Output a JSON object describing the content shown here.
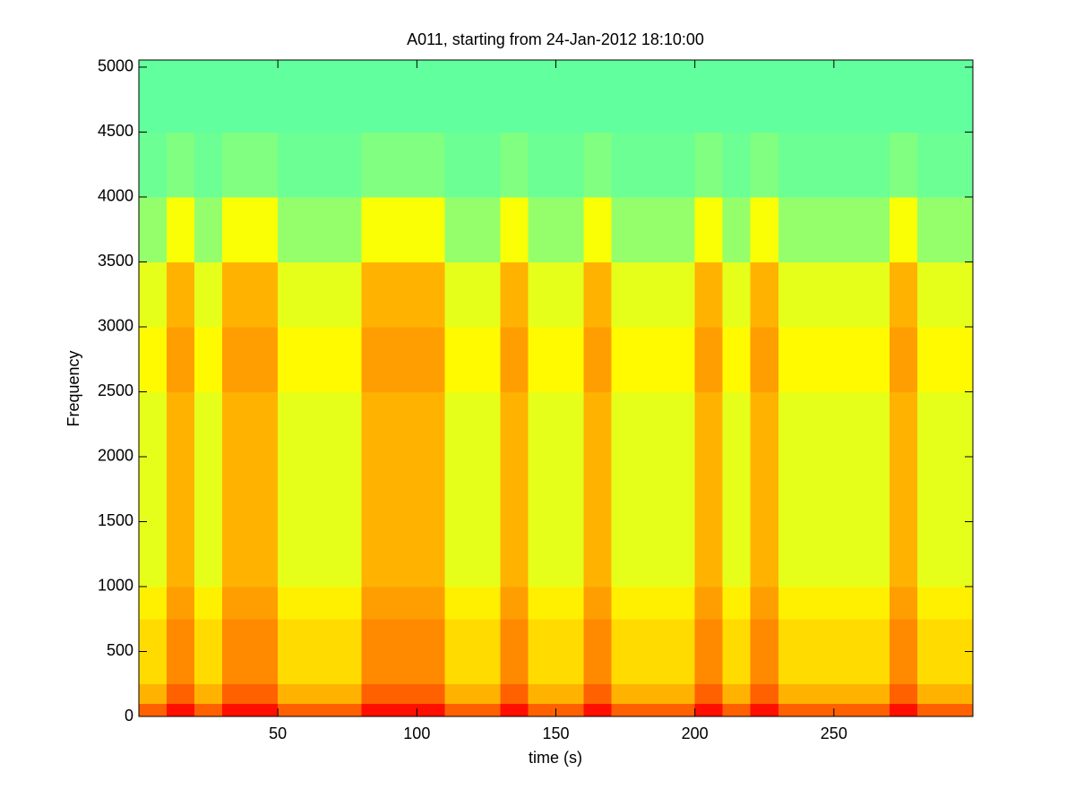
{
  "chart_data": {
    "type": "spectrogram",
    "title": "A011, starting from 24-Jan-2012 18:10:00",
    "x_label": "time (s)",
    "y_label": "Frequency",
    "xlim": [
      0,
      300
    ],
    "ylim": [
      0,
      5055
    ],
    "xticks": [
      50,
      100,
      150,
      200,
      250
    ],
    "yticks": [
      0,
      500,
      1000,
      1500,
      2000,
      2500,
      3000,
      3500,
      4000,
      4500,
      5000
    ],
    "colormap": "jet",
    "clim": [
      0,
      1
    ],
    "xbins": [
      0,
      10,
      20,
      30,
      40,
      50,
      60,
      70,
      80,
      90,
      100,
      110,
      120,
      130,
      140,
      150,
      160,
      170,
      180,
      190,
      200,
      210,
      220,
      230,
      240,
      250,
      260,
      270,
      280,
      290,
      300
    ],
    "ybins": [
      0,
      100,
      250,
      500,
      750,
      1000,
      1500,
      2000,
      2500,
      3000,
      3500,
      4000,
      4500,
      5000,
      5055
    ],
    "values": [
      [
        0.78,
        0.86,
        0.78,
        0.86,
        0.86,
        0.78,
        0.78,
        0.78,
        0.86,
        0.86,
        0.86,
        0.78,
        0.78,
        0.86,
        0.78,
        0.78,
        0.86,
        0.78,
        0.78,
        0.78,
        0.86,
        0.78,
        0.86,
        0.78,
        0.78,
        0.78,
        0.78,
        0.86,
        0.78,
        0.78
      ],
      [
        0.7,
        0.78,
        0.7,
        0.78,
        0.78,
        0.7,
        0.7,
        0.7,
        0.78,
        0.78,
        0.78,
        0.7,
        0.7,
        0.78,
        0.7,
        0.7,
        0.78,
        0.7,
        0.7,
        0.7,
        0.78,
        0.7,
        0.78,
        0.7,
        0.7,
        0.7,
        0.7,
        0.78,
        0.7,
        0.7
      ],
      [
        0.66,
        0.74,
        0.66,
        0.74,
        0.74,
        0.66,
        0.66,
        0.66,
        0.74,
        0.74,
        0.74,
        0.66,
        0.66,
        0.74,
        0.66,
        0.66,
        0.74,
        0.66,
        0.66,
        0.66,
        0.74,
        0.66,
        0.74,
        0.66,
        0.66,
        0.66,
        0.66,
        0.74,
        0.66,
        0.66
      ],
      [
        0.66,
        0.74,
        0.66,
        0.74,
        0.74,
        0.66,
        0.66,
        0.66,
        0.74,
        0.74,
        0.74,
        0.66,
        0.66,
        0.74,
        0.66,
        0.66,
        0.74,
        0.66,
        0.66,
        0.66,
        0.74,
        0.66,
        0.74,
        0.66,
        0.66,
        0.66,
        0.66,
        0.74,
        0.66,
        0.66
      ],
      [
        0.64,
        0.72,
        0.64,
        0.72,
        0.72,
        0.64,
        0.64,
        0.64,
        0.72,
        0.72,
        0.72,
        0.64,
        0.64,
        0.72,
        0.64,
        0.64,
        0.72,
        0.64,
        0.64,
        0.64,
        0.72,
        0.64,
        0.72,
        0.64,
        0.64,
        0.64,
        0.64,
        0.72,
        0.64,
        0.64
      ],
      [
        0.6,
        0.7,
        0.6,
        0.7,
        0.7,
        0.6,
        0.6,
        0.6,
        0.7,
        0.7,
        0.7,
        0.6,
        0.6,
        0.7,
        0.6,
        0.6,
        0.7,
        0.6,
        0.6,
        0.6,
        0.7,
        0.6,
        0.7,
        0.6,
        0.6,
        0.6,
        0.6,
        0.7,
        0.6,
        0.6
      ],
      [
        0.6,
        0.7,
        0.6,
        0.7,
        0.7,
        0.6,
        0.6,
        0.6,
        0.7,
        0.7,
        0.7,
        0.6,
        0.6,
        0.7,
        0.6,
        0.6,
        0.7,
        0.6,
        0.6,
        0.6,
        0.7,
        0.6,
        0.7,
        0.6,
        0.6,
        0.6,
        0.6,
        0.7,
        0.6,
        0.6
      ],
      [
        0.6,
        0.7,
        0.6,
        0.7,
        0.7,
        0.6,
        0.6,
        0.6,
        0.7,
        0.7,
        0.7,
        0.6,
        0.6,
        0.7,
        0.6,
        0.6,
        0.7,
        0.6,
        0.6,
        0.6,
        0.7,
        0.6,
        0.7,
        0.6,
        0.6,
        0.6,
        0.6,
        0.7,
        0.6,
        0.6
      ],
      [
        0.63,
        0.72,
        0.63,
        0.72,
        0.72,
        0.63,
        0.63,
        0.63,
        0.72,
        0.72,
        0.72,
        0.63,
        0.63,
        0.72,
        0.63,
        0.63,
        0.72,
        0.63,
        0.63,
        0.63,
        0.72,
        0.63,
        0.72,
        0.63,
        0.63,
        0.63,
        0.63,
        0.72,
        0.63,
        0.63
      ],
      [
        0.6,
        0.7,
        0.6,
        0.7,
        0.7,
        0.6,
        0.6,
        0.6,
        0.7,
        0.7,
        0.7,
        0.6,
        0.6,
        0.7,
        0.6,
        0.6,
        0.7,
        0.6,
        0.6,
        0.6,
        0.7,
        0.6,
        0.7,
        0.6,
        0.6,
        0.6,
        0.6,
        0.7,
        0.6,
        0.6
      ],
      [
        0.52,
        0.62,
        0.52,
        0.62,
        0.62,
        0.52,
        0.52,
        0.52,
        0.62,
        0.62,
        0.62,
        0.52,
        0.52,
        0.62,
        0.52,
        0.52,
        0.62,
        0.52,
        0.52,
        0.52,
        0.62,
        0.52,
        0.62,
        0.52,
        0.52,
        0.52,
        0.52,
        0.62,
        0.52,
        0.52
      ],
      [
        0.48,
        0.5,
        0.48,
        0.5,
        0.5,
        0.48,
        0.48,
        0.48,
        0.5,
        0.5,
        0.5,
        0.48,
        0.48,
        0.5,
        0.48,
        0.48,
        0.5,
        0.48,
        0.48,
        0.48,
        0.5,
        0.48,
        0.5,
        0.48,
        0.48,
        0.48,
        0.48,
        0.5,
        0.48,
        0.48
      ],
      [
        0.47,
        0.47,
        0.47,
        0.47,
        0.47,
        0.47,
        0.47,
        0.47,
        0.47,
        0.47,
        0.47,
        0.47,
        0.47,
        0.47,
        0.47,
        0.47,
        0.47,
        0.47,
        0.47,
        0.47,
        0.47,
        0.47,
        0.47,
        0.47,
        0.47,
        0.47,
        0.47,
        0.47,
        0.47,
        0.47
      ],
      [
        0.47,
        0.47,
        0.47,
        0.47,
        0.47,
        0.47,
        0.47,
        0.47,
        0.47,
        0.47,
        0.47,
        0.47,
        0.47,
        0.47,
        0.47,
        0.47,
        0.47,
        0.47,
        0.47,
        0.47,
        0.47,
        0.47,
        0.47,
        0.47,
        0.47,
        0.47,
        0.47,
        0.47,
        0.47,
        0.47
      ]
    ]
  }
}
